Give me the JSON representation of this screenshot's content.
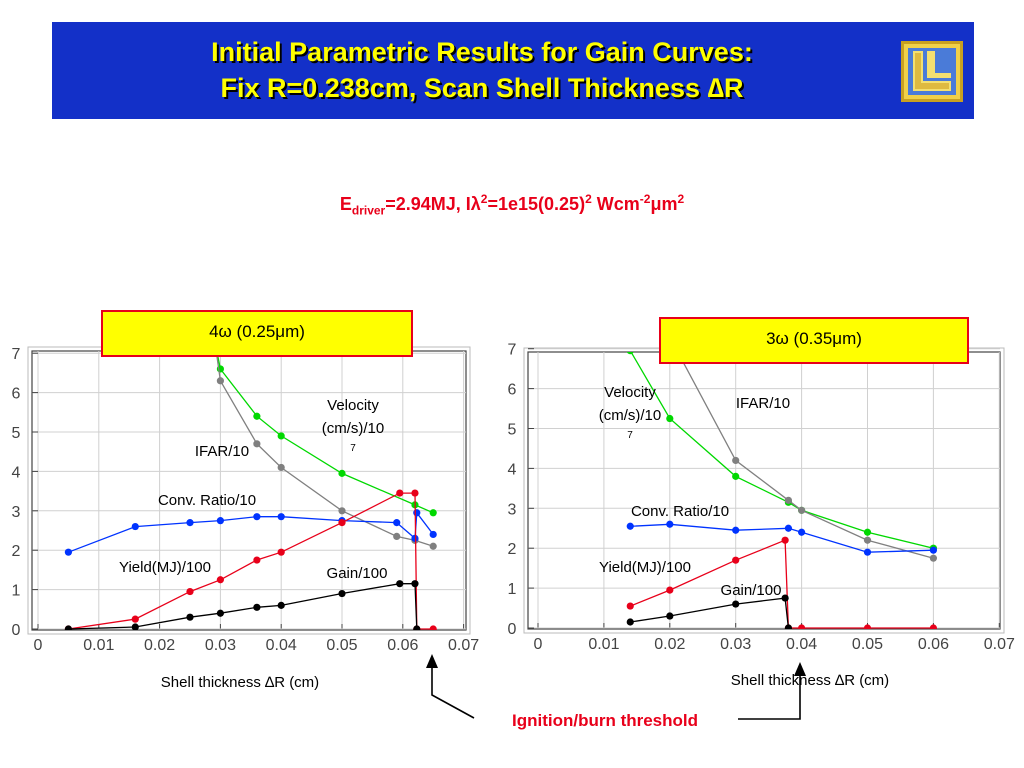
{
  "slide": {
    "title_line_1": "Initial Parametric Results for Gain Curves:",
    "title_line_2": "Fix R=0.238cm, Scan Shell Thickness ∆R",
    "subtitle": {
      "e": "E",
      "driver": "driver",
      "after_driver": "=2.94MJ,  Iλ",
      "sq1": "2",
      "mid": "=1e15(0.25)",
      "sq2": "2",
      "unit": " Wcm",
      "neg2": "-2",
      "um": "μm",
      "sq3": "2"
    },
    "threshold_label": "Ignition/burn threshold",
    "colors": {
      "banner": "#1330c8",
      "title": "#ffff00",
      "accent_red": "#e8001a",
      "panel_box": "#ffff00"
    },
    "logo_icon": "llnl-logo-icon"
  },
  "chart_data": [
    {
      "type": "line",
      "panel_label": "4ω (0.25μm)",
      "xlabel": "Shell thickness ∆R (cm)",
      "xlim": [
        0,
        0.07
      ],
      "ylim": [
        0,
        7
      ],
      "x_ticks": [
        "0",
        "0.01",
        "0.02",
        "0.03",
        "0.04",
        "0.05",
        "0.06",
        "0.07"
      ],
      "y_ticks": [
        "0",
        "1",
        "2",
        "3",
        "4",
        "5",
        "6",
        "7"
      ],
      "series": [
        {
          "name": "Velocity (cm/s)/10",
          "name_sup": "7",
          "color": "#00d800",
          "points": [
            [
              0.029,
              7.35
            ],
            [
              0.03,
              6.6
            ],
            [
              0.036,
              5.4
            ],
            [
              0.04,
              4.9
            ],
            [
              0.05,
              3.95
            ],
            [
              0.062,
              3.15
            ],
            [
              0.065,
              2.95
            ]
          ]
        },
        {
          "name": "IFAR/10",
          "color": "#808080",
          "points": [
            [
              0.029,
              7.4
            ],
            [
              0.03,
              6.3
            ],
            [
              0.036,
              4.7
            ],
            [
              0.04,
              4.1
            ],
            [
              0.05,
              3.0
            ],
            [
              0.059,
              2.35
            ],
            [
              0.062,
              2.25
            ],
            [
              0.065,
              2.1
            ]
          ]
        },
        {
          "name": "Conv. Ratio/10",
          "color": "#0033ff",
          "points": [
            [
              0.005,
              1.95
            ],
            [
              0.016,
              2.6
            ],
            [
              0.025,
              2.7
            ],
            [
              0.03,
              2.75
            ],
            [
              0.036,
              2.85
            ],
            [
              0.04,
              2.85
            ],
            [
              0.05,
              2.75
            ],
            [
              0.059,
              2.7
            ],
            [
              0.062,
              2.3
            ],
            [
              0.0623,
              2.95
            ],
            [
              0.065,
              2.4
            ]
          ]
        },
        {
          "name": "Yield(MJ)/100",
          "color": "#e8001a",
          "points": [
            [
              0.005,
              0.0
            ],
            [
              0.016,
              0.25
            ],
            [
              0.025,
              0.95
            ],
            [
              0.03,
              1.25
            ],
            [
              0.036,
              1.75
            ],
            [
              0.04,
              1.95
            ],
            [
              0.05,
              2.7
            ],
            [
              0.0595,
              3.45
            ],
            [
              0.062,
              3.45
            ],
            [
              0.0623,
              0.0
            ],
            [
              0.065,
              0.0
            ]
          ]
        },
        {
          "name": "Gain/100",
          "color": "#000000",
          "points": [
            [
              0.005,
              0.0
            ],
            [
              0.016,
              0.05
            ],
            [
              0.025,
              0.3
            ],
            [
              0.03,
              0.4
            ],
            [
              0.036,
              0.55
            ],
            [
              0.04,
              0.6
            ],
            [
              0.05,
              0.9
            ],
            [
              0.0595,
              1.15
            ],
            [
              0.062,
              1.15
            ],
            [
              0.0623,
              0.0
            ]
          ]
        }
      ]
    },
    {
      "type": "line",
      "panel_label": "3ω (0.35μm)",
      "xlabel": "Shell thickness ∆R (cm)",
      "xlim": [
        0,
        0.07
      ],
      "ylim": [
        0,
        7
      ],
      "x_ticks": [
        "0",
        "0.01",
        "0.02",
        "0.03",
        "0.04",
        "0.05",
        "0.06",
        "0.07"
      ],
      "y_ticks": [
        "0",
        "1",
        "2",
        "3",
        "4",
        "5",
        "6",
        "7"
      ],
      "series": [
        {
          "name": "Velocity (cm/s)/10",
          "name_sup": "7",
          "color": "#00d800",
          "points": [
            [
              0.014,
              6.95
            ],
            [
              0.02,
              5.25
            ],
            [
              0.03,
              3.8
            ],
            [
              0.038,
              3.15
            ],
            [
              0.04,
              2.95
            ],
            [
              0.05,
              2.4
            ],
            [
              0.06,
              2.0
            ]
          ]
        },
        {
          "name": "IFAR/10",
          "color": "#808080",
          "points": [
            [
              0.019,
              7.6
            ],
            [
              0.03,
              4.2
            ],
            [
              0.038,
              3.2
            ],
            [
              0.04,
              2.95
            ],
            [
              0.05,
              2.2
            ],
            [
              0.06,
              1.75
            ]
          ]
        },
        {
          "name": "Conv. Ratio/10",
          "color": "#0033ff",
          "points": [
            [
              0.014,
              2.55
            ],
            [
              0.02,
              2.6
            ],
            [
              0.03,
              2.45
            ],
            [
              0.038,
              2.5
            ],
            [
              0.04,
              2.4
            ],
            [
              0.05,
              1.9
            ],
            [
              0.06,
              1.95
            ]
          ]
        },
        {
          "name": "Yield(MJ)/100",
          "color": "#e8001a",
          "points": [
            [
              0.014,
              0.55
            ],
            [
              0.02,
              0.95
            ],
            [
              0.03,
              1.7
            ],
            [
              0.0375,
              2.2
            ],
            [
              0.038,
              0.0
            ],
            [
              0.04,
              0.0
            ],
            [
              0.05,
              0.0
            ],
            [
              0.06,
              0.0
            ]
          ]
        },
        {
          "name": "Gain/100",
          "color": "#000000",
          "points": [
            [
              0.014,
              0.15
            ],
            [
              0.02,
              0.3
            ],
            [
              0.03,
              0.6
            ],
            [
              0.0375,
              0.75
            ],
            [
              0.038,
              0.0
            ]
          ]
        }
      ]
    }
  ]
}
